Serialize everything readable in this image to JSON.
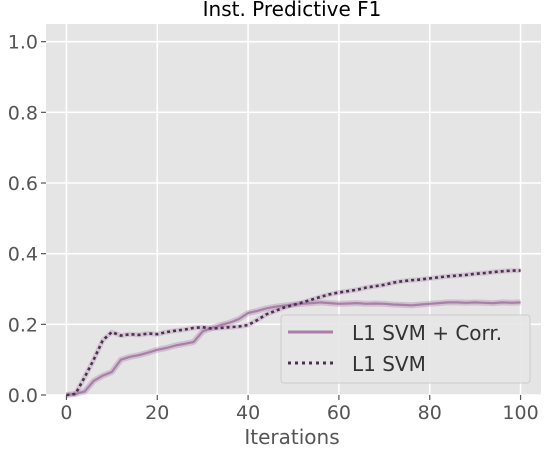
{
  "chart_data": {
    "type": "line",
    "title": "Inst. Predictive F1",
    "xlabel": "Iterations",
    "ylabel": "",
    "xlim": [
      -4.5,
      104.5
    ],
    "ylim": [
      0.0,
      1.05
    ],
    "xticks": [
      0,
      20,
      40,
      60,
      80,
      100
    ],
    "yticks": [
      0.0,
      0.2,
      0.4,
      0.6,
      0.8,
      1.0
    ],
    "xtick_labels": [
      "0",
      "20",
      "40",
      "60",
      "80",
      "100"
    ],
    "ytick_labels": [
      "0.0",
      "0.2",
      "0.4",
      "0.6",
      "0.8",
      "1.0"
    ],
    "grid": true,
    "legend_position": "lower-right",
    "series": [
      {
        "name": "L1 SVM + Corr.",
        "style": "solid",
        "color": "#a97fa8",
        "x": [
          0,
          2,
          4,
          6,
          8,
          10,
          12,
          14,
          16,
          18,
          20,
          22,
          24,
          26,
          28,
          30,
          32,
          34,
          36,
          38,
          40,
          42,
          44,
          46,
          48,
          50,
          52,
          54,
          56,
          58,
          60,
          62,
          64,
          66,
          68,
          70,
          72,
          74,
          76,
          78,
          80,
          82,
          84,
          86,
          88,
          90,
          92,
          94,
          96,
          98,
          100
        ],
        "y": [
          0.0,
          0.003,
          0.01,
          0.04,
          0.055,
          0.065,
          0.1,
          0.108,
          0.113,
          0.12,
          0.128,
          0.133,
          0.14,
          0.145,
          0.15,
          0.18,
          0.19,
          0.198,
          0.205,
          0.215,
          0.232,
          0.238,
          0.245,
          0.25,
          0.253,
          0.256,
          0.258,
          0.26,
          0.262,
          0.26,
          0.258,
          0.259,
          0.26,
          0.258,
          0.259,
          0.258,
          0.256,
          0.255,
          0.254,
          0.256,
          0.258,
          0.26,
          0.262,
          0.262,
          0.261,
          0.262,
          0.261,
          0.26,
          0.262,
          0.261,
          0.262
        ]
      },
      {
        "name": "L1 SVM",
        "style": "dotted",
        "color": "#4b3050",
        "x": [
          0,
          2,
          4,
          6,
          8,
          10,
          12,
          14,
          16,
          18,
          20,
          22,
          24,
          26,
          28,
          30,
          32,
          34,
          36,
          38,
          40,
          42,
          44,
          46,
          48,
          50,
          52,
          54,
          56,
          58,
          60,
          62,
          64,
          66,
          68,
          70,
          72,
          74,
          76,
          78,
          80,
          82,
          84,
          86,
          88,
          90,
          92,
          94,
          96,
          98,
          100
        ],
        "y": [
          0.0,
          0.003,
          0.05,
          0.1,
          0.155,
          0.178,
          0.168,
          0.172,
          0.17,
          0.174,
          0.172,
          0.178,
          0.182,
          0.185,
          0.19,
          0.192,
          0.188,
          0.19,
          0.192,
          0.194,
          0.198,
          0.212,
          0.228,
          0.238,
          0.248,
          0.255,
          0.262,
          0.27,
          0.278,
          0.285,
          0.29,
          0.294,
          0.298,
          0.304,
          0.308,
          0.312,
          0.318,
          0.322,
          0.325,
          0.327,
          0.33,
          0.333,
          0.336,
          0.338,
          0.34,
          0.343,
          0.345,
          0.348,
          0.35,
          0.352,
          0.352
        ]
      }
    ]
  }
}
